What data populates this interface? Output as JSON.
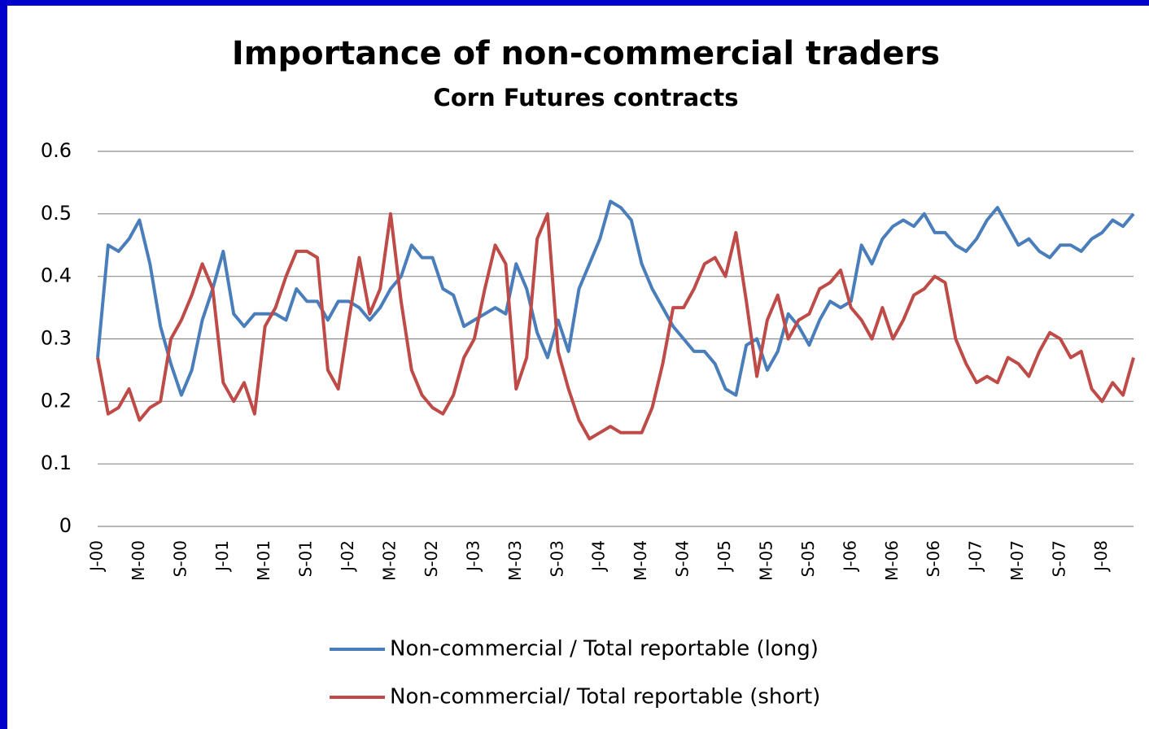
{
  "chart_data": {
    "type": "line",
    "title": "Importance of non-commercial traders",
    "subtitle": "Corn Futures contracts",
    "categories": [
      "J-00",
      null,
      null,
      null,
      "M-00",
      null,
      null,
      null,
      "S-00",
      null,
      null,
      null,
      "J-01",
      null,
      null,
      null,
      "M-01",
      null,
      null,
      null,
      "S-01",
      null,
      null,
      null,
      "J-02",
      null,
      null,
      null,
      "M-02",
      null,
      null,
      null,
      "S-02",
      null,
      null,
      null,
      "J-03",
      null,
      null,
      null,
      "M-03",
      null,
      null,
      null,
      "S-03",
      null,
      null,
      null,
      "J-04",
      null,
      null,
      null,
      "M-04",
      null,
      null,
      null,
      "S-04",
      null,
      null,
      null,
      "J-05",
      null,
      null,
      null,
      "M-05",
      null,
      null,
      null,
      "S-05",
      null,
      null,
      null,
      "J-06",
      null,
      null,
      null,
      "M-06",
      null,
      null,
      null,
      "S-06",
      null,
      null,
      null,
      "J-07",
      null,
      null,
      null,
      "M-07",
      null,
      null,
      null,
      "S-07",
      null,
      null,
      null,
      "J-08",
      null,
      null,
      null
    ],
    "series": [
      {
        "name": "Non-commercial / Total reportable (long)",
        "color": "#4a7ebb",
        "values": [
          0.27,
          0.45,
          0.44,
          0.46,
          0.49,
          0.42,
          0.32,
          0.26,
          0.21,
          0.25,
          0.33,
          0.38,
          0.44,
          0.34,
          0.32,
          0.34,
          0.34,
          0.34,
          0.33,
          0.38,
          0.36,
          0.36,
          0.33,
          0.36,
          0.36,
          0.35,
          0.33,
          0.35,
          0.38,
          0.4,
          0.45,
          0.43,
          0.43,
          0.38,
          0.37,
          0.32,
          0.33,
          0.34,
          0.35,
          0.34,
          0.42,
          0.38,
          0.31,
          0.27,
          0.33,
          0.28,
          0.38,
          0.42,
          0.46,
          0.52,
          0.51,
          0.49,
          0.42,
          0.38,
          0.35,
          0.32,
          0.3,
          0.28,
          0.28,
          0.26,
          0.22,
          0.21,
          0.29,
          0.3,
          0.25,
          0.28,
          0.34,
          0.32,
          0.29,
          0.33,
          0.36,
          0.35,
          0.36,
          0.45,
          0.42,
          0.46,
          0.48,
          0.49,
          0.48,
          0.5,
          0.47,
          0.47,
          0.45,
          0.44,
          0.46,
          0.49,
          0.51,
          0.48,
          0.45,
          0.46,
          0.44,
          0.43,
          0.45,
          0.45,
          0.44,
          0.46,
          0.47,
          0.49,
          0.48,
          0.5
        ]
      },
      {
        "name": "Non-commercial/ Total reportable (short)",
        "color": "#be4b48",
        "values": [
          0.27,
          0.18,
          0.19,
          0.22,
          0.17,
          0.19,
          0.2,
          0.3,
          0.33,
          0.37,
          0.42,
          0.38,
          0.23,
          0.2,
          0.23,
          0.18,
          0.32,
          0.35,
          0.4,
          0.44,
          0.44,
          0.43,
          0.25,
          0.22,
          0.33,
          0.43,
          0.34,
          0.38,
          0.5,
          0.36,
          0.25,
          0.21,
          0.19,
          0.18,
          0.21,
          0.27,
          0.3,
          0.38,
          0.45,
          0.42,
          0.22,
          0.27,
          0.46,
          0.5,
          0.28,
          0.22,
          0.17,
          0.14,
          0.15,
          0.16,
          0.15,
          0.15,
          0.15,
          0.19,
          0.26,
          0.35,
          0.35,
          0.38,
          0.42,
          0.43,
          0.4,
          0.47,
          0.36,
          0.24,
          0.33,
          0.37,
          0.3,
          0.33,
          0.34,
          0.38,
          0.39,
          0.41,
          0.35,
          0.33,
          0.3,
          0.35,
          0.3,
          0.33,
          0.37,
          0.38,
          0.4,
          0.39,
          0.3,
          0.26,
          0.23,
          0.24,
          0.23,
          0.27,
          0.26,
          0.24,
          0.28,
          0.31,
          0.3,
          0.27,
          0.28,
          0.22,
          0.2,
          0.23,
          0.21,
          0.27
        ]
      }
    ],
    "ylim": [
      0,
      0.6
    ],
    "yticks": [
      0,
      0.1,
      0.2,
      0.3,
      0.4,
      0.5,
      0.6
    ],
    "grid": true,
    "legend": "bottom"
  }
}
